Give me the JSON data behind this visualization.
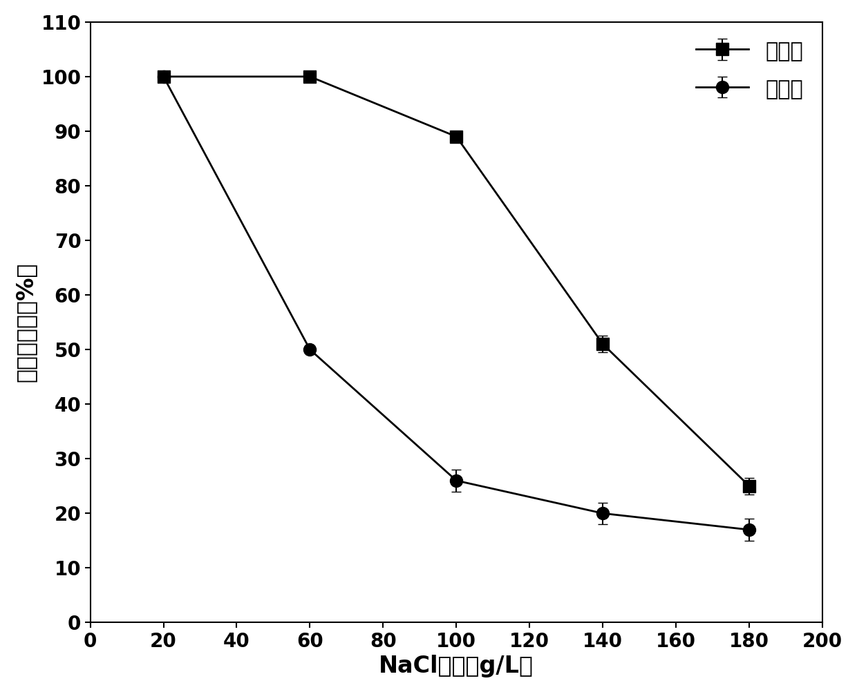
{
  "treatment_x": [
    20,
    60,
    100,
    140,
    180
  ],
  "treatment_y": [
    100,
    100,
    89,
    51,
    25
  ],
  "treatment_yerr": [
    0,
    0,
    0,
    1.5,
    1.5
  ],
  "control_x": [
    20,
    60,
    100,
    140,
    180
  ],
  "control_y": [
    100,
    50,
    26,
    20,
    17
  ],
  "control_yerr": [
    0,
    0,
    2,
    2,
    2
  ],
  "xlabel": "NaCl浓度（g/L）",
  "ylabel": "苯酵去除率（%）",
  "legend_treatment": "处理组",
  "legend_control": "对照组",
  "xlim": [
    0,
    200
  ],
  "ylim": [
    0,
    110
  ],
  "xticks": [
    0,
    20,
    40,
    60,
    80,
    100,
    120,
    140,
    160,
    180,
    200
  ],
  "yticks": [
    0,
    10,
    20,
    30,
    40,
    50,
    60,
    70,
    80,
    90,
    100,
    110
  ],
  "line_color": "#000000",
  "marker_color": "#000000",
  "background_color": "#ffffff",
  "tick_font_size": 20,
  "label_font_size": 24,
  "legend_font_size": 22
}
